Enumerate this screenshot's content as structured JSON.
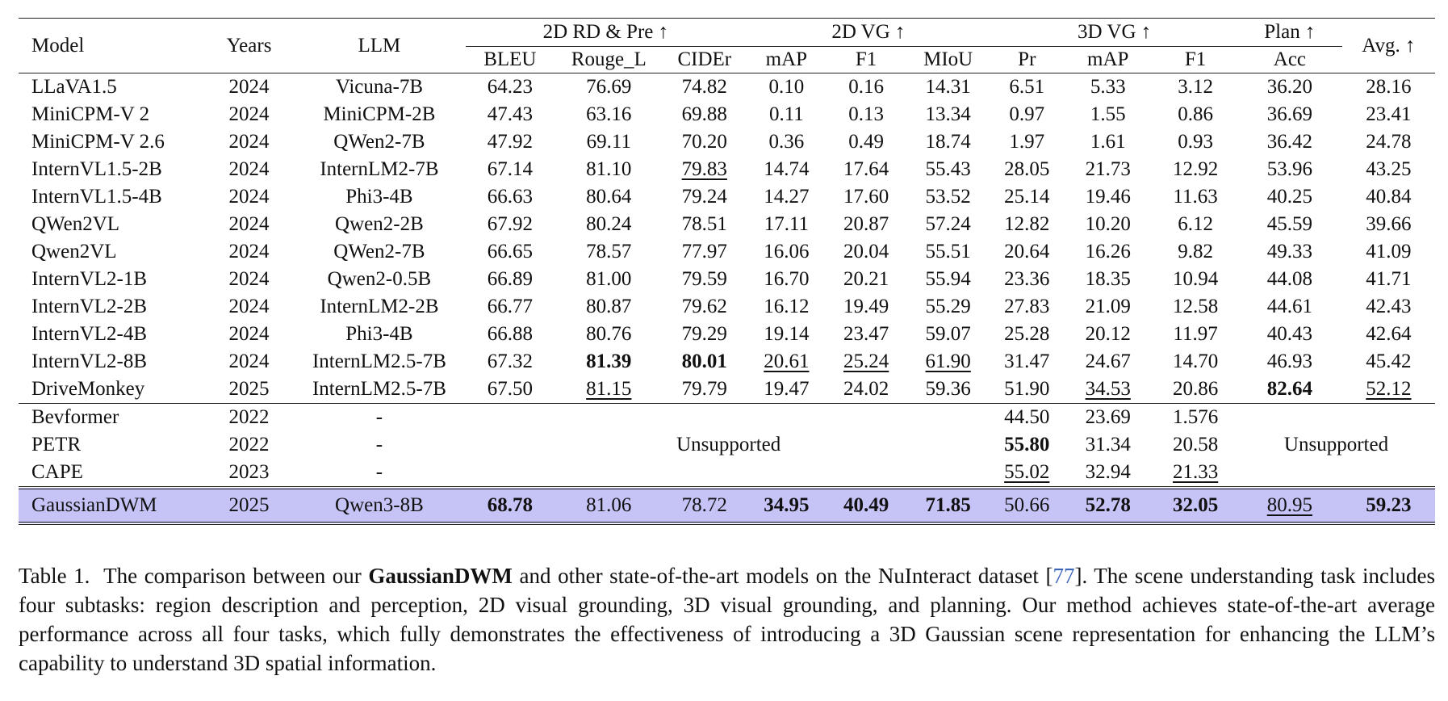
{
  "table": {
    "header_groups": {
      "model": "Model",
      "years": "Years",
      "llm": "LLM",
      "g2drd": "2D RD & Pre ↑",
      "g2dvg": "2D VG ↑",
      "g3dvg": "3D VG ↑",
      "gplan": "Plan ↑",
      "avg": "Avg. ↑"
    },
    "sub_headers": [
      "BLEU",
      "Rouge_L",
      "CIDEr",
      "mAP",
      "F1",
      "MIoU",
      "Pr",
      "mAP",
      "F1",
      "Acc"
    ],
    "rows": [
      {
        "model": "LLaVA1.5",
        "year": "2024",
        "llm": "Vicuna-7B",
        "v": [
          "64.23",
          "76.69",
          "74.82",
          "0.10",
          "0.16",
          "14.31",
          "6.51",
          "5.33",
          "3.12",
          "36.20",
          "28.16"
        ]
      },
      {
        "model": "MiniCPM-V 2",
        "year": "2024",
        "llm": "MiniCPM-2B",
        "v": [
          "47.43",
          "63.16",
          "69.88",
          "0.11",
          "0.13",
          "13.34",
          "0.97",
          "1.55",
          "0.86",
          "36.69",
          "23.41"
        ]
      },
      {
        "model": "MiniCPM-V 2.6",
        "year": "2024",
        "llm": "QWen2-7B",
        "v": [
          "47.92",
          "69.11",
          "70.20",
          "0.36",
          "0.49",
          "18.74",
          "1.97",
          "1.61",
          "0.93",
          "36.42",
          "24.78"
        ]
      },
      {
        "model": "InternVL1.5-2B",
        "year": "2024",
        "llm": "InternLM2-7B",
        "v": [
          "67.14",
          "81.10",
          "79.83",
          "14.74",
          "17.64",
          "55.43",
          "28.05",
          "21.73",
          "12.92",
          "53.96",
          "43.25"
        ]
      },
      {
        "model": "InternVL1.5-4B",
        "year": "2024",
        "llm": "Phi3-4B",
        "v": [
          "66.63",
          "80.64",
          "79.24",
          "14.27",
          "17.60",
          "53.52",
          "25.14",
          "19.46",
          "11.63",
          "40.25",
          "40.84"
        ]
      },
      {
        "model": "QWen2VL",
        "year": "2024",
        "llm": "Qwen2-2B",
        "v": [
          "67.92",
          "80.24",
          "78.51",
          "17.11",
          "20.87",
          "57.24",
          "12.82",
          "10.20",
          "6.12",
          "45.59",
          "39.66"
        ]
      },
      {
        "model": "Qwen2VL",
        "year": "2024",
        "llm": "QWen2-7B",
        "v": [
          "66.65",
          "78.57",
          "77.97",
          "16.06",
          "20.04",
          "55.51",
          "20.64",
          "16.26",
          "9.82",
          "49.33",
          "41.09"
        ]
      },
      {
        "model": "InternVL2-1B",
        "year": "2024",
        "llm": "Qwen2-0.5B",
        "v": [
          "66.89",
          "81.00",
          "79.59",
          "16.70",
          "20.21",
          "55.94",
          "23.36",
          "18.35",
          "10.94",
          "44.08",
          "41.71"
        ]
      },
      {
        "model": "InternVL2-2B",
        "year": "2024",
        "llm": "InternLM2-2B",
        "v": [
          "66.77",
          "80.87",
          "79.62",
          "16.12",
          "19.49",
          "55.29",
          "27.83",
          "21.09",
          "12.58",
          "44.61",
          "42.43"
        ]
      },
      {
        "model": "InternVL2-4B",
        "year": "2024",
        "llm": "Phi3-4B",
        "v": [
          "66.88",
          "80.76",
          "79.29",
          "19.14",
          "23.47",
          "59.07",
          "25.28",
          "20.12",
          "11.97",
          "40.43",
          "42.64"
        ]
      },
      {
        "model": "InternVL2-8B",
        "year": "2024",
        "llm": "InternLM2.5-7B",
        "v": [
          "67.32",
          "81.39",
          "80.01",
          "20.61",
          "25.24",
          "61.90",
          "31.47",
          "24.67",
          "14.70",
          "46.93",
          "45.42"
        ]
      },
      {
        "model": "DriveMonkey",
        "year": "2025",
        "llm": "InternLM2.5-7B",
        "v": [
          "67.50",
          "81.15",
          "79.79",
          "19.47",
          "24.02",
          "59.36",
          "51.90",
          "34.53",
          "20.86",
          "82.64",
          "52.12"
        ]
      }
    ],
    "detection_rows": [
      {
        "model": "Bevformer",
        "year": "2022",
        "llm": "-",
        "v3d": [
          "44.50",
          "23.69",
          "1.576"
        ]
      },
      {
        "model": "PETR",
        "year": "2022",
        "llm": "-",
        "v3d": [
          "55.80",
          "31.34",
          "20.58"
        ]
      },
      {
        "model": "CAPE",
        "year": "2023",
        "llm": "-",
        "v3d": [
          "55.02",
          "32.94",
          "21.33"
        ]
      }
    ],
    "unsupported_label": "Unsupported",
    "ours": {
      "model": "GaussianDWM",
      "year": "2025",
      "llm": "Qwen3-8B",
      "v": [
        "68.78",
        "81.06",
        "78.72",
        "34.95",
        "40.49",
        "71.85",
        "50.66",
        "52.78",
        "32.05",
        "80.95",
        "59.23"
      ]
    },
    "highlight_color": "#c6c3f7"
  },
  "caption": {
    "label": "Table 1.",
    "t1": "The comparison between our",
    "name": "GaussianDWM",
    "t2": "and other state-of-the-art models on the NuInteract dataset [",
    "cite": "77",
    "t3": "]. The scene understanding task includes four subtasks: region description and perception, 2D visual grounding, 3D visual grounding, and planning. Our method achieves state-of-the-art average performance across all four tasks, which fully demonstrates the effectiveness of introducing a 3D Gaussian scene representation for enhancing the LLM’s capability to understand 3D spatial information."
  }
}
